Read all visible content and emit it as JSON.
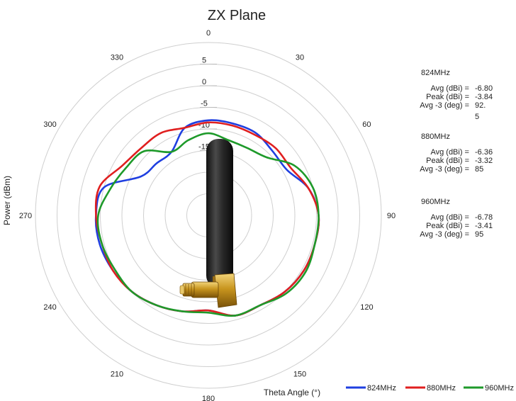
{
  "chart_data": {
    "type": "polar-line",
    "title": "ZX Plane",
    "xlabel": "Theta  Angle (°)",
    "ylabel": "Power (dBm)",
    "angle_ticks": [
      "0",
      "30",
      "60",
      "90",
      "120",
      "150",
      "180",
      "210",
      "240",
      "270",
      "300",
      "330"
    ],
    "radial_ticks": [
      "5",
      "0",
      "-5",
      "-10",
      "-15"
    ],
    "radial_range": [
      -30,
      10
    ],
    "series": [
      {
        "name": "824MHz",
        "color": "#1f3fe0",
        "angles": [
          0,
          15,
          30,
          45,
          60,
          75,
          90,
          105,
          120,
          135,
          150,
          165,
          180,
          195,
          210,
          225,
          240,
          255,
          270,
          285,
          300,
          315,
          330,
          345
        ],
        "values": [
          -8,
          -8,
          -8,
          -9,
          -9,
          -6,
          -4.5,
          -4.5,
          -4.5,
          -5,
          -6,
          -6,
          -8,
          -7,
          -6,
          -5,
          -4.5,
          -4,
          -4,
          -5,
          -12,
          -13,
          -13,
          -9
        ]
      },
      {
        "name": "880MHz",
        "color": "#e01f1f",
        "angles": [
          0,
          15,
          30,
          45,
          60,
          75,
          90,
          105,
          120,
          135,
          150,
          165,
          180,
          195,
          210,
          225,
          240,
          255,
          270,
          285,
          300,
          315,
          330,
          345
        ],
        "values": [
          -8.5,
          -8.5,
          -8.5,
          -8,
          -8,
          -6,
          -4.5,
          -4.5,
          -4.5,
          -5,
          -6,
          -6,
          -8,
          -7,
          -6,
          -5,
          -4.5,
          -4.5,
          -4,
          -4,
          -7,
          -8,
          -8,
          -9
        ]
      },
      {
        "name": "960MHz",
        "color": "#1e9a2a",
        "angles": [
          0,
          15,
          30,
          45,
          60,
          75,
          90,
          105,
          120,
          135,
          150,
          165,
          180,
          195,
          210,
          225,
          240,
          255,
          270,
          285,
          300,
          315,
          330,
          345
        ],
        "values": [
          -11,
          -12,
          -12,
          -11,
          -7,
          -5,
          -4.5,
          -4.5,
          -4,
          -4.5,
          -6,
          -6,
          -7.5,
          -7,
          -6,
          -5,
          -5,
          -4.5,
          -4.5,
          -6.5,
          -8,
          -9,
          -13,
          -12
        ]
      }
    ],
    "legend_placement": "bottom-right",
    "grid": true
  },
  "stats": [
    {
      "header": "824MHz",
      "rows": [
        {
          "label": "Avg (dBi) =",
          "value": "-6.80"
        },
        {
          "label": "Peak (dBi) =",
          "value": "-3.84"
        },
        {
          "label": "Avg -3 (deg) =",
          "value": "92."
        }
      ],
      "extra": "5"
    },
    {
      "header": "880MHz",
      "rows": [
        {
          "label": "Avg (dBi) =",
          "value": "-6.36"
        },
        {
          "label": "Peak (dBi) =",
          "value": "-3.32"
        },
        {
          "label": "Avg -3 (deg) =",
          "value": "85"
        }
      ]
    },
    {
      "header": "960MHz",
      "rows": [
        {
          "label": "Avg (dBi) =",
          "value": "-6.78"
        },
        {
          "label": "Peak (dBi) =",
          "value": "-3.41"
        },
        {
          "label": "Avg -3 (deg) =",
          "value": "95"
        }
      ]
    }
  ]
}
